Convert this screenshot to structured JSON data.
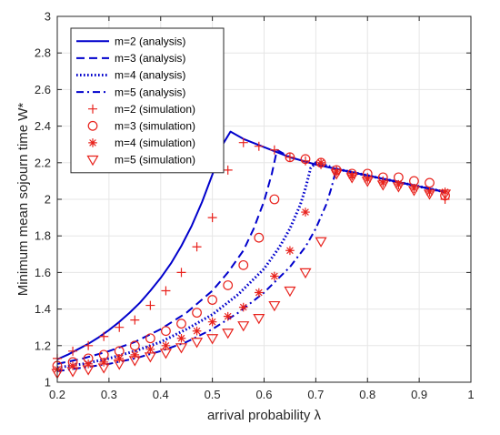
{
  "chart_data": {
    "type": "line",
    "xlabel": "arrival probability λ",
    "ylabel": "Minimum mean sojourn time W*",
    "xlim": [
      0.2,
      1.0
    ],
    "ylim": [
      1.0,
      3.0
    ],
    "x_ticks": [
      0.2,
      0.3,
      0.4,
      0.5,
      0.6,
      0.7,
      0.8,
      0.9,
      1.0
    ],
    "x_tick_labels": [
      "0.2",
      "0.3",
      "0.4",
      "0.5",
      "0.6",
      "0.7",
      "0.8",
      "0.9",
      "1"
    ],
    "y_ticks": [
      1.0,
      1.2,
      1.4,
      1.6,
      1.8,
      2.0,
      2.2,
      2.4,
      2.6,
      2.8,
      3.0
    ],
    "y_tick_labels": [
      "1",
      "1.2",
      "1.4",
      "1.6",
      "1.8",
      "2",
      "2.2",
      "2.4",
      "2.6",
      "2.8",
      "3"
    ],
    "grid": true,
    "legend_position": "top-left",
    "line_color": "#0000cc",
    "marker_color": "#e8221c",
    "series": [
      {
        "name": "m=2 (analysis)",
        "kind": "line",
        "dash": "solid",
        "x": [
          0.2,
          0.22,
          0.24,
          0.26,
          0.28,
          0.3,
          0.32,
          0.34,
          0.36,
          0.38,
          0.4,
          0.42,
          0.44,
          0.46,
          0.48,
          0.5,
          0.52,
          0.535,
          0.56,
          0.6,
          0.65,
          0.7,
          0.75,
          0.8,
          0.85,
          0.9,
          0.95
        ],
        "y": [
          1.125,
          1.15,
          1.18,
          1.21,
          1.245,
          1.285,
          1.33,
          1.38,
          1.435,
          1.5,
          1.57,
          1.65,
          1.745,
          1.855,
          1.985,
          2.135,
          2.3,
          2.37,
          2.33,
          2.285,
          2.23,
          2.19,
          2.16,
          2.13,
          2.1,
          2.07,
          2.04
        ]
      },
      {
        "name": "m=3 (analysis)",
        "kind": "line",
        "dash": "dashed",
        "x": [
          0.2,
          0.25,
          0.3,
          0.35,
          0.4,
          0.45,
          0.5,
          0.53,
          0.56,
          0.58,
          0.6,
          0.615,
          0.625,
          0.65,
          0.7,
          0.75,
          0.8,
          0.85,
          0.9,
          0.95
        ],
        "y": [
          1.1,
          1.13,
          1.17,
          1.22,
          1.29,
          1.38,
          1.5,
          1.6,
          1.72,
          1.84,
          1.99,
          2.14,
          2.27,
          2.23,
          2.19,
          2.16,
          2.13,
          2.1,
          2.07,
          2.04
        ]
      },
      {
        "name": "m=4 (analysis)",
        "kind": "line",
        "dash": "dotted",
        "x": [
          0.2,
          0.25,
          0.3,
          0.35,
          0.4,
          0.45,
          0.5,
          0.55,
          0.6,
          0.63,
          0.65,
          0.67,
          0.68,
          0.69,
          0.7,
          0.75,
          0.8,
          0.85,
          0.9,
          0.95
        ],
        "y": [
          1.08,
          1.1,
          1.13,
          1.17,
          1.22,
          1.29,
          1.37,
          1.48,
          1.62,
          1.74,
          1.84,
          1.97,
          2.06,
          2.17,
          2.2,
          2.16,
          2.13,
          2.1,
          2.07,
          2.04
        ]
      },
      {
        "name": "m=5 (analysis)",
        "kind": "line",
        "dash": "dashdot",
        "x": [
          0.2,
          0.25,
          0.3,
          0.35,
          0.4,
          0.45,
          0.5,
          0.55,
          0.6,
          0.65,
          0.68,
          0.7,
          0.72,
          0.73,
          0.74,
          0.75,
          0.8,
          0.85,
          0.9,
          0.95
        ],
        "y": [
          1.06,
          1.08,
          1.1,
          1.13,
          1.17,
          1.22,
          1.29,
          1.38,
          1.49,
          1.63,
          1.74,
          1.84,
          1.97,
          2.06,
          2.17,
          2.16,
          2.13,
          2.1,
          2.07,
          2.04
        ]
      },
      {
        "name": "m=2 (simulation)",
        "kind": "marker",
        "marker": "plus",
        "x": [
          0.2,
          0.23,
          0.26,
          0.29,
          0.32,
          0.35,
          0.38,
          0.41,
          0.44,
          0.47,
          0.5,
          0.53,
          0.56,
          0.59,
          0.62,
          0.65,
          0.68,
          0.71,
          0.74,
          0.77,
          0.8,
          0.83,
          0.86,
          0.89,
          0.92,
          0.95
        ],
        "y": [
          1.13,
          1.17,
          1.2,
          1.25,
          1.3,
          1.34,
          1.42,
          1.5,
          1.6,
          1.74,
          1.9,
          2.16,
          2.31,
          2.29,
          2.27,
          2.23,
          2.21,
          2.19,
          2.16,
          2.13,
          2.12,
          2.1,
          2.08,
          2.06,
          2.04,
          2.0
        ]
      },
      {
        "name": "m=3 (simulation)",
        "kind": "marker",
        "marker": "circle",
        "x": [
          0.2,
          0.23,
          0.26,
          0.29,
          0.32,
          0.35,
          0.38,
          0.41,
          0.44,
          0.47,
          0.5,
          0.53,
          0.56,
          0.59,
          0.62,
          0.65,
          0.68,
          0.71,
          0.74,
          0.77,
          0.8,
          0.83,
          0.86,
          0.89,
          0.92,
          0.95
        ],
        "y": [
          1.09,
          1.11,
          1.13,
          1.15,
          1.17,
          1.2,
          1.24,
          1.28,
          1.32,
          1.38,
          1.45,
          1.53,
          1.64,
          1.79,
          2.0,
          2.23,
          2.22,
          2.2,
          2.16,
          2.14,
          2.14,
          2.12,
          2.12,
          2.1,
          2.09,
          2.02
        ]
      },
      {
        "name": "m=4 (simulation)",
        "kind": "marker",
        "marker": "asterisk",
        "x": [
          0.2,
          0.23,
          0.26,
          0.29,
          0.32,
          0.35,
          0.38,
          0.41,
          0.44,
          0.47,
          0.5,
          0.53,
          0.56,
          0.59,
          0.62,
          0.65,
          0.68,
          0.71,
          0.74,
          0.77,
          0.8,
          0.83,
          0.86,
          0.89,
          0.92,
          0.95
        ],
        "y": [
          1.07,
          1.09,
          1.1,
          1.11,
          1.13,
          1.15,
          1.18,
          1.2,
          1.24,
          1.28,
          1.33,
          1.36,
          1.41,
          1.49,
          1.58,
          1.72,
          1.93,
          2.2,
          2.15,
          2.13,
          2.11,
          2.09,
          2.08,
          2.06,
          2.04,
          2.04
        ]
      },
      {
        "name": "m=5 (simulation)",
        "kind": "marker",
        "marker": "triangle-down",
        "x": [
          0.2,
          0.23,
          0.26,
          0.29,
          0.32,
          0.35,
          0.38,
          0.41,
          0.44,
          0.47,
          0.5,
          0.53,
          0.56,
          0.59,
          0.62,
          0.65,
          0.68,
          0.71,
          0.74,
          0.77,
          0.8,
          0.83,
          0.86,
          0.89,
          0.92,
          0.95
        ],
        "y": [
          1.05,
          1.06,
          1.07,
          1.08,
          1.1,
          1.12,
          1.14,
          1.16,
          1.19,
          1.22,
          1.24,
          1.27,
          1.31,
          1.35,
          1.42,
          1.5,
          1.6,
          1.77,
          2.14,
          2.12,
          2.1,
          2.08,
          2.07,
          2.05,
          2.03,
          2.03
        ]
      }
    ]
  }
}
